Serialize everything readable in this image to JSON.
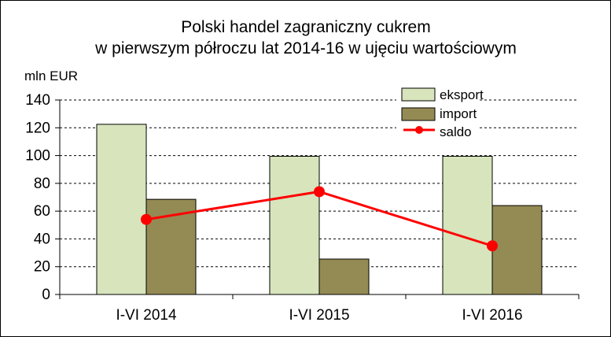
{
  "chart_data": {
    "type": "bar",
    "title_lines": [
      "Polski handel zagraniczny cukrem",
      "w pierwszym półroczu lat 2014-16 w ujęciu wartościowym"
    ],
    "unit_label": "mln EUR",
    "categories": [
      "I-VI 2014",
      "I-VI 2015",
      "I-VI 2016"
    ],
    "series": [
      {
        "name": "eksport",
        "kind": "bar",
        "values": [
          122.5,
          99.5,
          99.5
        ],
        "color": "#d7e4bc"
      },
      {
        "name": "import",
        "kind": "bar",
        "values": [
          68.5,
          25.5,
          64
        ],
        "color": "#948a54"
      },
      {
        "name": "saldo",
        "kind": "line",
        "values": [
          54,
          74,
          35
        ],
        "color": "#ff0000"
      }
    ],
    "ylim": [
      0,
      140
    ],
    "yticks": [
      "0",
      "20",
      "40",
      "60",
      "80",
      "100",
      "120",
      "140"
    ],
    "grid": true,
    "legend_position": "top-right"
  }
}
